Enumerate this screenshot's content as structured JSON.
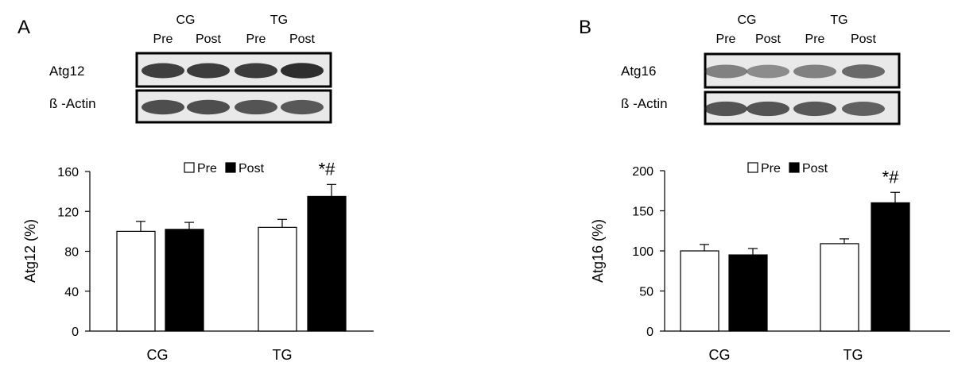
{
  "chart_data": [
    {
      "panel_letter": "A",
      "type": "bar",
      "blot": {
        "group_labels": [
          "CG",
          "TG"
        ],
        "lane_labels": [
          "Pre",
          "Post",
          "Pre",
          "Post"
        ],
        "row_labels": [
          "Atg12",
          "ß -Actin"
        ],
        "band_intensity": [
          [
            0.82,
            0.84,
            0.84,
            0.9
          ],
          [
            0.75,
            0.75,
            0.72,
            0.7
          ]
        ]
      },
      "categories": [
        "CG",
        "TG"
      ],
      "legend": [
        "Pre",
        "Post"
      ],
      "series": [
        {
          "name": "Pre",
          "values": [
            100,
            104
          ],
          "errors": [
            10,
            8
          ],
          "fill": "#ffffff"
        },
        {
          "name": "Post",
          "values": [
            102,
            135
          ],
          "errors": [
            7,
            12
          ],
          "fill": "#000000"
        }
      ],
      "annotations": [
        {
          "category": "TG",
          "series": "Post",
          "text": "*#"
        }
      ],
      "ylabel": "Atg12 (%)",
      "xlabel": "",
      "ylim": [
        0,
        160
      ],
      "yticks": [
        "0",
        "40",
        "80",
        "120",
        "160"
      ],
      "grid": false,
      "legend_position": "top-center"
    },
    {
      "panel_letter": "B",
      "type": "bar",
      "blot": {
        "group_labels": [
          "CG",
          "TG"
        ],
        "lane_labels": [
          "Pre",
          "Post",
          "Pre",
          "Post"
        ],
        "row_labels": [
          "Atg16",
          "ß -Actin"
        ],
        "band_intensity": [
          [
            0.5,
            0.45,
            0.5,
            0.62
          ],
          [
            0.72,
            0.72,
            0.7,
            0.66
          ]
        ]
      },
      "categories": [
        "CG",
        "TG"
      ],
      "legend": [
        "Pre",
        "Post"
      ],
      "series": [
        {
          "name": "Pre",
          "values": [
            100,
            109
          ],
          "errors": [
            8,
            6
          ],
          "fill": "#ffffff"
        },
        {
          "name": "Post",
          "values": [
            95,
            160
          ],
          "errors": [
            8,
            13
          ],
          "fill": "#000000"
        }
      ],
      "annotations": [
        {
          "category": "TG",
          "series": "Post",
          "text": "*#"
        }
      ],
      "ylabel": "Atg16 (%)",
      "xlabel": "",
      "ylim": [
        0,
        200
      ],
      "yticks": [
        "0",
        "50",
        "100",
        "150",
        "200"
      ],
      "grid": false,
      "legend_position": "top-center"
    }
  ]
}
